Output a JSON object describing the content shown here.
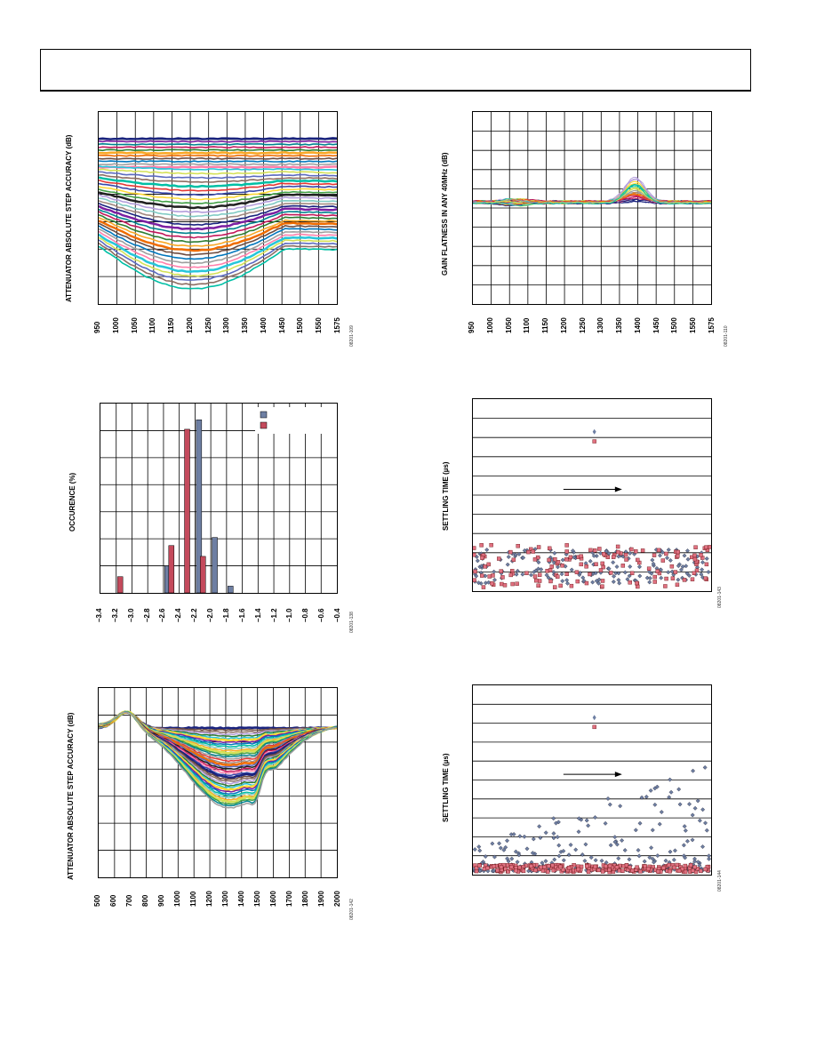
{
  "page": {
    "colors": {
      "series_palette": [
        "#1a237e",
        "#7b1fa2",
        "#00838f",
        "#c2185b",
        "#2e7d32",
        "#f9a825",
        "#ef6c00",
        "#6d4c41",
        "#0277bd",
        "#9e9e9e",
        "#ff80ab",
        "#26c6da",
        "#d4e157",
        "#5c6bc0",
        "#8d6e63",
        "#00bfa5",
        "#e53935",
        "#3949ab",
        "#fdd835",
        "#43a047",
        "#212121",
        "#b39ddb",
        "#80cbc4",
        "#a1887f"
      ],
      "bar_blue": "#6e7fa3",
      "bar_red": "#c44a5c",
      "scatter_blue": "#6e7fa3",
      "scatter_red": "#e07080"
    }
  },
  "figures": {
    "f1": {
      "ylabel": "ATTENUATOR ABSOLUTE STEP ACCURACY (dB)",
      "xticks": [
        "950",
        "1000",
        "1050",
        "1100",
        "1150",
        "1200",
        "1250",
        "1300",
        "1350",
        "1400",
        "1450",
        "1500",
        "1550",
        "1575"
      ],
      "figid": "08201-109",
      "chart_data": {
        "type": "line",
        "x": [
          950,
          1000,
          1050,
          1100,
          1150,
          1200,
          1250,
          1300,
          1350,
          1400,
          1450,
          1500,
          1550,
          1575
        ],
        "xlim": [
          950,
          1575
        ],
        "series_count": 40,
        "grid": true,
        "ylabel": "ATTENUATOR ABSOLUTE STEP ACCURACY (dB)"
      }
    },
    "f2": {
      "ylabel": "GAIN FLATNESS IN ANY 40MHz (dB)",
      "xticks": [
        "950",
        "1000",
        "1050",
        "1100",
        "1150",
        "1200",
        "1250",
        "1300",
        "1350",
        "1400",
        "1450",
        "1500",
        "1550",
        "1575"
      ],
      "figid": "08201-110",
      "chart_data": {
        "type": "line",
        "x": [
          950,
          1000,
          1050,
          1100,
          1150,
          1200,
          1250,
          1300,
          1350,
          1400,
          1450,
          1500,
          1550,
          1575
        ],
        "xlim": [
          950,
          1575
        ],
        "series_count": 30,
        "grid": true,
        "ylabel": "GAIN FLATNESS IN ANY 40MHz (dB)"
      }
    },
    "f3": {
      "ylabel": "OCCURENCE (%)",
      "xticks": [
        "–3.4",
        "–3.2",
        "–3.0",
        "–2.8",
        "–2.6",
        "–2.4",
        "–2.2",
        "–2.0",
        "–1.8",
        "–1.6",
        "–1.4",
        "–1.2",
        "–1.0",
        "–0.8",
        "–0.6",
        "–0.4"
      ],
      "figid": "08201-138",
      "chart_data": {
        "type": "bar",
        "categories": [
          "-3.4",
          "-3.2",
          "-3.0",
          "-2.8",
          "-2.6",
          "-2.4",
          "-2.2",
          "-2.0",
          "-1.8",
          "-1.6",
          "-1.4",
          "-1.2",
          "-1.0",
          "-0.8",
          "-0.6",
          "-0.4"
        ],
        "xlim": [
          -3.4,
          -0.4
        ],
        "ylim": [
          0,
          7
        ],
        "legend_placement": "top-right",
        "series": [
          {
            "color_key": "bar_blue",
            "points": [
              [
                -2.55,
                1.0
              ],
              [
                -2.15,
                6.4
              ],
              [
                -1.95,
                2.05
              ],
              [
                -1.75,
                0.25
              ]
            ]
          },
          {
            "color_key": "bar_red",
            "points": [
              [
                -3.15,
                0.6
              ],
              [
                -2.5,
                1.75
              ],
              [
                -2.3,
                6.05
              ],
              [
                -2.1,
                1.35
              ]
            ]
          }
        ],
        "grid": true,
        "ylabel": "OCCURENCE (%)"
      }
    },
    "f4": {
      "ylabel": "SETTLING TIME (µs)",
      "figid": "08201-143",
      "chart_data": {
        "type": "scatter",
        "series_count": 2,
        "grid": "horizontal",
        "ylabel": "SETTLING TIME (µs)"
      }
    },
    "f5": {
      "ylabel": "ATTENUATOR ABSOLUTE STEP ACCURACY (dB)",
      "xticks": [
        "500",
        "600",
        "700",
        "800",
        "900",
        "1000",
        "1100",
        "1200",
        "1300",
        "1400",
        "1500",
        "1600",
        "1700",
        "1800",
        "1900",
        "2000"
      ],
      "figid": "08201-142",
      "chart_data": {
        "type": "line",
        "x": [
          500,
          600,
          700,
          800,
          900,
          1000,
          1100,
          1200,
          1300,
          1400,
          1500,
          1600,
          1700,
          1800,
          1900,
          2000
        ],
        "xlim": [
          500,
          2000
        ],
        "series_count": 40,
        "grid": true,
        "ylabel": "ATTENUATOR ABSOLUTE STEP ACCURACY (dB)"
      }
    },
    "f6": {
      "ylabel": "SETTLING TIME (µs)",
      "figid": "08201-144",
      "chart_data": {
        "type": "scatter",
        "series_count": 2,
        "grid": "horizontal",
        "ylabel": "SETTLING TIME (µs)"
      }
    }
  }
}
